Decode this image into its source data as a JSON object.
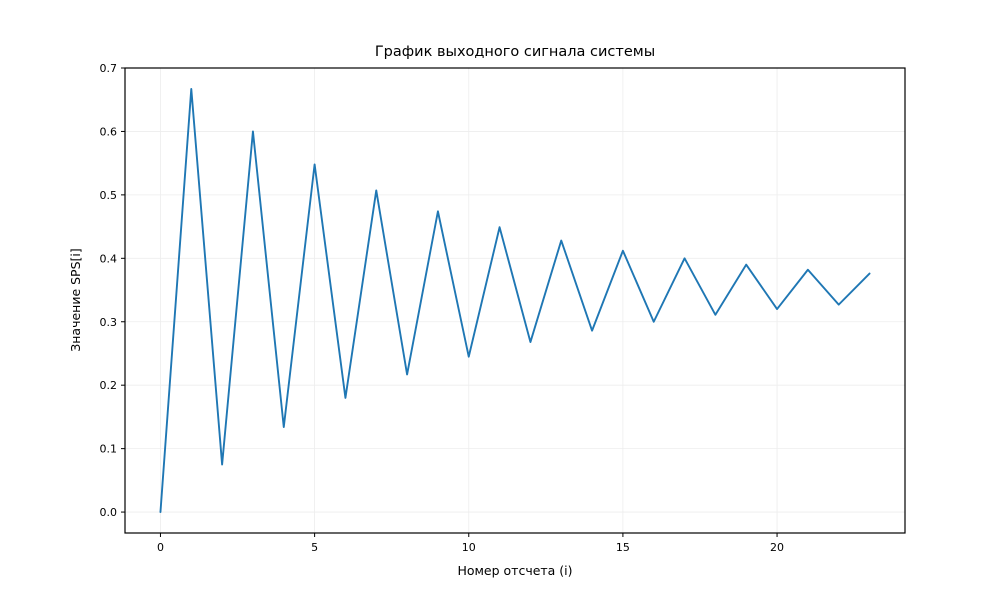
{
  "chart_data": {
    "type": "line",
    "title": "График выходного сигнала системы",
    "xlabel": "Номер отсчета (i)",
    "ylabel": "Значение SPS[i]",
    "x": [
      0,
      1,
      2,
      3,
      4,
      5,
      6,
      7,
      8,
      9,
      10,
      11,
      12,
      13,
      14,
      15,
      16,
      17,
      18,
      19,
      20,
      21,
      22,
      23
    ],
    "values": [
      0.0,
      0.667,
      0.075,
      0.6,
      0.134,
      0.548,
      0.18,
      0.507,
      0.217,
      0.474,
      0.245,
      0.449,
      0.268,
      0.428,
      0.286,
      0.412,
      0.3,
      0.4,
      0.311,
      0.39,
      0.32,
      0.382,
      0.327,
      0.376
    ],
    "x_ticks": [
      0,
      5,
      10,
      15,
      20
    ],
    "y_ticks": [
      0.0,
      0.1,
      0.2,
      0.3,
      0.4,
      0.5,
      0.6,
      0.7
    ],
    "xlim": [
      -1.15,
      24.15
    ],
    "ylim": [
      -0.033,
      0.7
    ],
    "line_color": "#1f77b4",
    "grid": true,
    "grid_color": "#ededed",
    "legend_position": "none",
    "background_color": "#ffffff"
  }
}
